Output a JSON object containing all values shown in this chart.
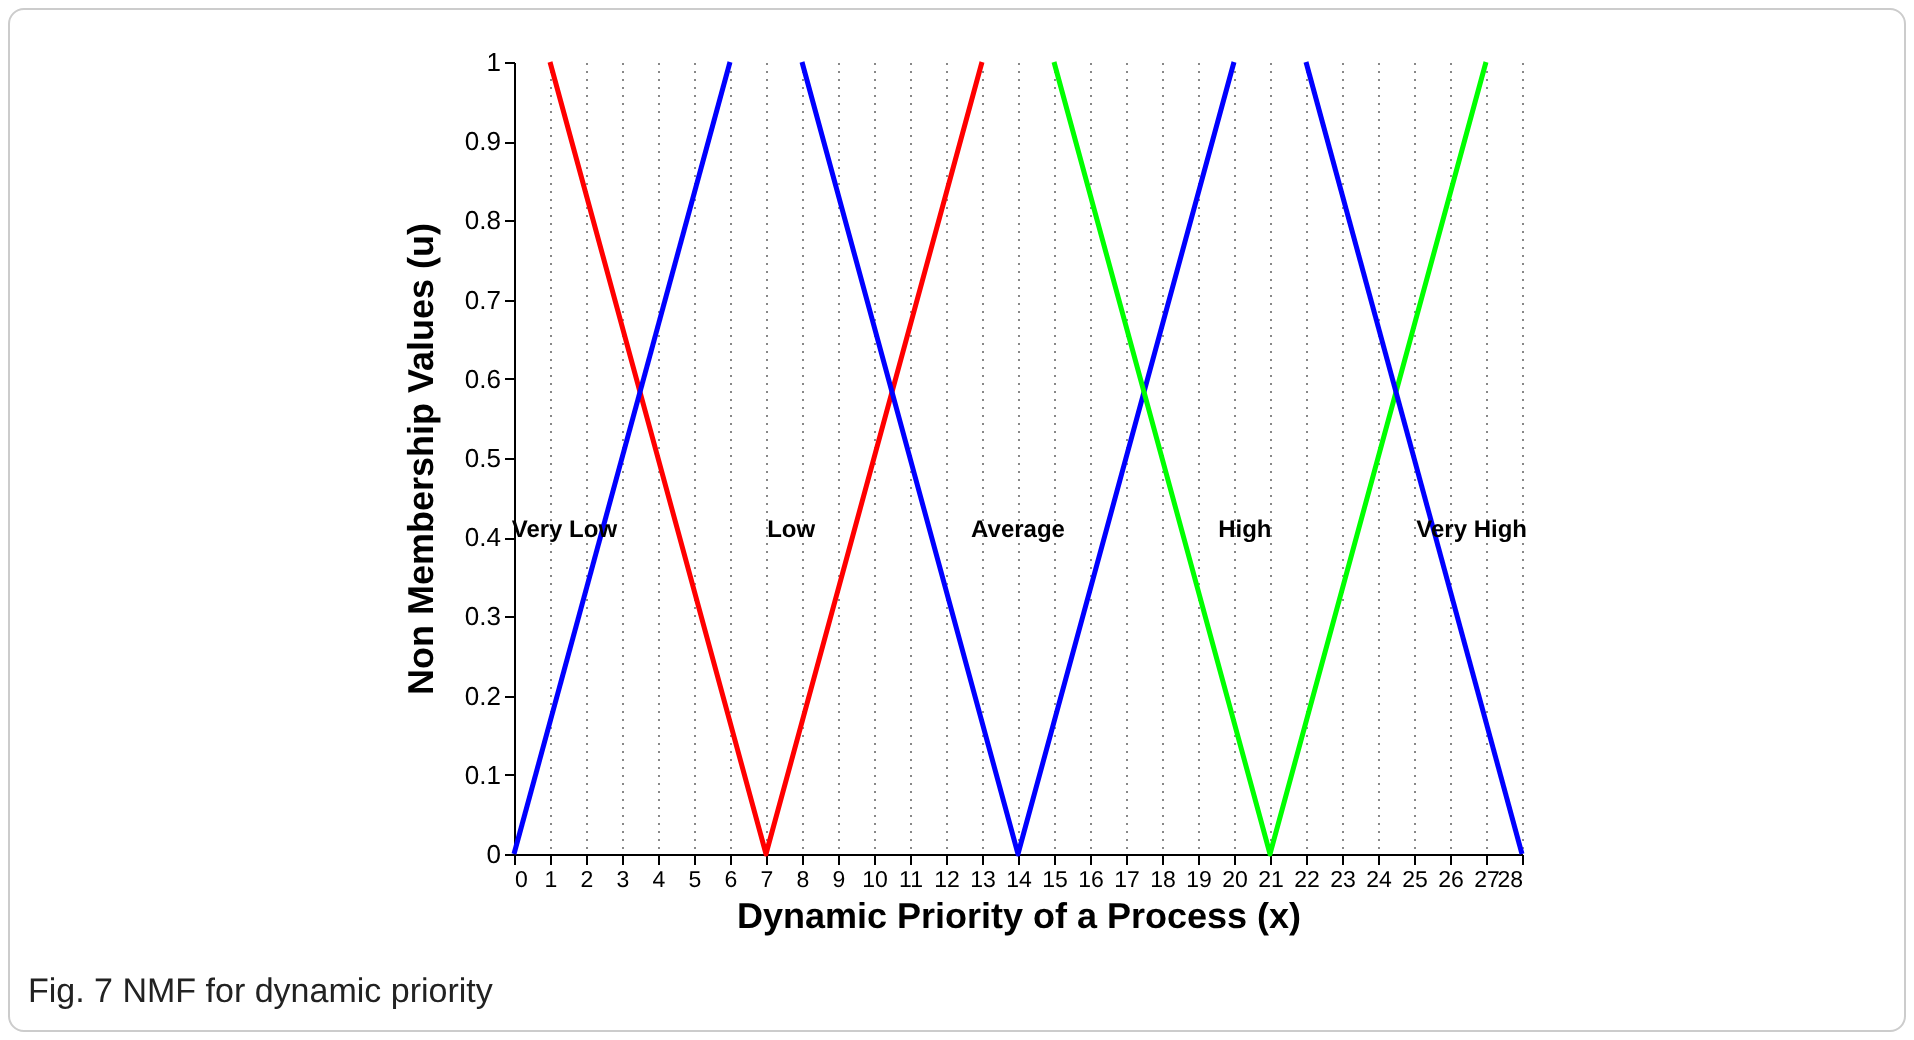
{
  "chart_data": {
    "type": "line",
    "xlabel": "Dynamic Priority of a Process (x)",
    "ylabel": "Non Membership Values (u)",
    "xlim": [
      0,
      28
    ],
    "xticks": [
      0,
      1,
      2,
      3,
      4,
      5,
      6,
      7,
      8,
      9,
      10,
      11,
      12,
      13,
      14,
      15,
      16,
      17,
      18,
      19,
      20,
      21,
      22,
      23,
      24,
      25,
      26,
      27,
      28
    ],
    "ylim": [
      0,
      1
    ],
    "yticks": [
      0,
      0.1,
      0.2,
      0.3,
      0.4,
      0.5,
      0.6,
      0.7,
      0.8,
      0.9,
      1
    ],
    "grid": "x",
    "legend": false,
    "marker": "none",
    "line_style": "solid",
    "series": [
      {
        "color": "#ff0000",
        "x": [
          1,
          7,
          13
        ],
        "values": [
          1,
          0,
          1
        ]
      },
      {
        "color": "#0000ff",
        "x": [
          0,
          6
        ],
        "values": [
          0,
          1
        ]
      },
      {
        "color": "#0000ff",
        "x": [
          8,
          14,
          20
        ],
        "values": [
          1,
          0,
          1
        ]
      },
      {
        "color": "#00ff00",
        "x": [
          15,
          21,
          27
        ],
        "values": [
          1,
          0,
          1
        ]
      },
      {
        "color": "#0000ff",
        "x": [
          22,
          28
        ],
        "values": [
          1,
          0
        ]
      }
    ],
    "annotations": [
      "Very Low",
      "Low",
      "Average",
      "High",
      "Very High",
      "Fig. 7 NMF for dynamic priority"
    ]
  }
}
